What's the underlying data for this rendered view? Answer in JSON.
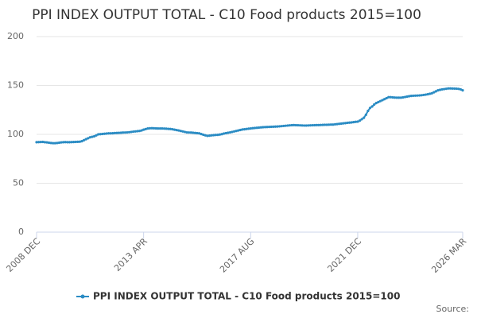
{
  "chart_data": {
    "type": "line",
    "title": "PPI INDEX OUTPUT TOTAL - C10 Food products 2015=100",
    "credits": "Source:",
    "categories": [
      "2008 DEC",
      null,
      null,
      null,
      null,
      null,
      null,
      null,
      null,
      null,
      null,
      null,
      null,
      null,
      null,
      null,
      null,
      null,
      null,
      null,
      null,
      null,
      null,
      null,
      null,
      null,
      null,
      null,
      null,
      null,
      null,
      null,
      null,
      null,
      null,
      null,
      null,
      null,
      null,
      null,
      null,
      null,
      null,
      null,
      null,
      null,
      null,
      null,
      null,
      null,
      null,
      null,
      "2013 APR",
      null,
      null,
      null,
      null,
      null,
      null,
      null,
      null,
      null,
      null,
      null,
      null,
      null,
      null,
      null,
      null,
      null,
      null,
      null,
      null,
      null,
      null,
      null,
      null,
      null,
      null,
      null,
      null,
      null,
      null,
      null,
      null,
      null,
      null,
      null,
      null,
      null,
      null,
      null,
      null,
      null,
      null,
      null,
      null,
      null,
      null,
      null,
      null,
      null,
      null,
      null,
      "2017 AUG",
      null,
      null,
      null,
      null,
      null,
      null,
      null,
      null,
      null,
      null,
      null,
      null,
      null,
      null,
      null,
      null,
      null,
      null,
      null,
      null,
      null,
      null,
      null,
      null,
      null,
      null,
      null,
      null,
      null,
      null,
      null,
      null,
      null,
      null,
      null,
      null,
      null,
      null,
      null,
      null,
      null,
      null,
      null,
      null,
      null,
      null,
      null,
      null,
      null,
      null,
      null,
      "2021 DEC",
      null,
      null,
      null,
      null,
      null,
      null,
      null,
      null,
      null,
      null,
      null,
      null,
      null,
      null,
      null,
      null,
      null,
      null,
      null,
      null,
      null,
      null,
      null,
      null,
      null,
      null,
      null,
      null,
      null,
      null,
      null,
      null,
      null,
      null,
      null,
      null,
      null,
      null,
      null,
      null,
      null,
      null,
      null,
      null,
      null,
      null,
      null,
      null,
      null,
      null,
      "2026 MAR"
    ],
    "series": [
      {
        "name": "PPI INDEX OUTPUT TOTAL - C10 Food products 2015=100",
        "color": "#2b8cc4",
        "values": [
          92,
          92.1,
          92.2,
          92.3,
          92,
          91.8,
          91.5,
          91.2,
          91,
          91,
          91.2,
          91.5,
          91.8,
          92,
          92.1,
          92,
          92,
          92.1,
          92.2,
          92.3,
          92.4,
          92.5,
          93,
          94,
          95,
          96,
          97,
          97.5,
          98,
          99,
          100,
          100.2,
          100.4,
          100.6,
          100.8,
          101,
          101,
          101.1,
          101.3,
          101.4,
          101.5,
          101.6,
          101.8,
          101.9,
          102,
          102.2,
          102.5,
          102.8,
          103,
          103.3,
          103.5,
          104,
          104.8,
          105.4,
          106,
          106.2,
          106.3,
          106.2,
          106.1,
          106,
          106,
          106,
          105.9,
          105.8,
          105.6,
          105.5,
          105.2,
          104.8,
          104.4,
          104,
          103.5,
          103,
          102.5,
          102,
          101.9,
          101.8,
          101.6,
          101.4,
          101.2,
          101,
          100.3,
          99.6,
          99,
          98.5,
          98.7,
          99,
          99.2,
          99.4,
          99.5,
          99.8,
          100.2,
          100.8,
          101.2,
          101.6,
          102,
          102.5,
          103,
          103.5,
          104,
          104.5,
          105,
          105.2,
          105.5,
          105.8,
          106,
          106.3,
          106.5,
          106.7,
          106.9,
          107.1,
          107.3,
          107.4,
          107.5,
          107.6,
          107.7,
          107.8,
          107.9,
          108,
          108.2,
          108.4,
          108.6,
          108.8,
          109,
          109.2,
          109.4,
          109.5,
          109.4,
          109.3,
          109.2,
          109.1,
          109,
          109,
          109.1,
          109.2,
          109.3,
          109.4,
          109.5,
          109.5,
          109.6,
          109.7,
          109.8,
          109.8,
          109.9,
          110,
          110,
          110.3,
          110.5,
          110.8,
          111,
          111.3,
          111.5,
          111.8,
          112,
          112.2,
          112.5,
          112.8,
          113,
          114,
          115.5,
          117,
          120,
          124,
          127,
          128.5,
          130.5,
          132,
          133,
          134,
          135,
          136,
          137,
          138,
          138,
          137.8,
          137.6,
          137.5,
          137.5,
          137.5,
          137.8,
          138.2,
          138.6,
          139,
          139.3,
          139.5,
          139.6,
          139.7,
          139.8,
          140,
          140.3,
          140.6,
          141,
          141.5,
          142,
          143,
          144,
          145,
          145.5,
          146,
          146.3,
          146.6,
          147,
          147,
          146.9,
          146.8,
          146.7,
          146.5,
          146,
          145
        ]
      }
    ],
    "ylim": [
      0,
      200
    ],
    "yticks": [
      0,
      50,
      100,
      150,
      200
    ],
    "grid": true
  }
}
